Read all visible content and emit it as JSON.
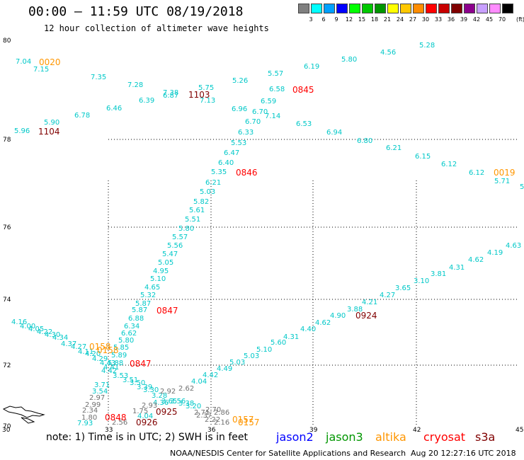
{
  "title": "00:00 – 11:59 UTC 08/19/2018",
  "subtitle": "12 hour collection of altimeter wave heights",
  "legend": {
    "unit": "(ft)",
    "bins": [
      {
        "label": "3",
        "color": "#808080"
      },
      {
        "label": "6",
        "color": "#00ffff"
      },
      {
        "label": "9",
        "color": "#00a0ff"
      },
      {
        "label": "12",
        "color": "#0000ff"
      },
      {
        "label": "15",
        "color": "#00ff00"
      },
      {
        "label": "18",
        "color": "#00c800"
      },
      {
        "label": "21",
        "color": "#009600"
      },
      {
        "label": "24",
        "color": "#ffff00"
      },
      {
        "label": "27",
        "color": "#ffc800"
      },
      {
        "label": "30",
        "color": "#ff8c00"
      },
      {
        "label": "33",
        "color": "#ff0000"
      },
      {
        "label": "36",
        "color": "#c80000"
      },
      {
        "label": "39",
        "color": "#800000"
      },
      {
        "label": "42",
        "color": "#8c008c"
      },
      {
        "label": "45",
        "color": "#c8a0ff"
      },
      {
        "label": "70",
        "color": "#ff8cff"
      },
      {
        "label": "",
        "color": "#000000"
      }
    ]
  },
  "map": {
    "lat_labels": [
      "80",
      "78",
      "76",
      "74",
      "72",
      "70"
    ],
    "lon_labels": [
      "30",
      "33",
      "36",
      "39",
      "42",
      "45"
    ]
  },
  "colors": {
    "jason2": "#0000ff",
    "jason3": "#009600",
    "altika": "#ff9600",
    "cryosat": "#ff0000",
    "s3a": "#800000",
    "wave_cyan": "#00c8c8",
    "wave_gray": "#707070"
  },
  "wave_heights": [
    {
      "v": "7.04",
      "c": "cyan"
    },
    {
      "v": "7.15",
      "c": "cyan"
    },
    {
      "v": "7.35",
      "c": "cyan"
    },
    {
      "v": "7.28",
      "c": "cyan"
    },
    {
      "v": "6.39",
      "c": "cyan"
    },
    {
      "v": "7.38",
      "c": "cyan"
    },
    {
      "v": "6.87",
      "c": "cyan"
    },
    {
      "v": "7.13",
      "c": "cyan"
    },
    {
      "v": "5.75",
      "c": "cyan"
    },
    {
      "v": "5.26",
      "c": "cyan"
    },
    {
      "v": "5.57",
      "c": "cyan"
    },
    {
      "v": "6.19",
      "c": "cyan"
    },
    {
      "v": "5.80",
      "c": "cyan"
    },
    {
      "v": "4.56",
      "c": "cyan"
    },
    {
      "v": "5.28",
      "c": "cyan"
    },
    {
      "v": "6.58",
      "c": "cyan"
    },
    {
      "v": "6.59",
      "c": "cyan"
    },
    {
      "v": "6.96",
      "c": "cyan"
    },
    {
      "v": "6.70",
      "c": "cyan"
    },
    {
      "v": "7.14",
      "c": "cyan"
    },
    {
      "v": "6.70",
      "c": "cyan"
    },
    {
      "v": "6.53",
      "c": "cyan"
    },
    {
      "v": "6.94",
      "c": "cyan"
    },
    {
      "v": "6.80",
      "c": "cyan"
    },
    {
      "v": "6.21",
      "c": "cyan"
    },
    {
      "v": "6.15",
      "c": "cyan"
    },
    {
      "v": "6.12",
      "c": "cyan"
    },
    {
      "v": "6.12",
      "c": "cyan"
    },
    {
      "v": "5.71",
      "c": "cyan"
    },
    {
      "v": "5",
      "c": "cyan"
    },
    {
      "v": "5.96",
      "c": "cyan"
    },
    {
      "v": "5.90",
      "c": "cyan"
    },
    {
      "v": "6.78",
      "c": "cyan"
    },
    {
      "v": "6.46",
      "c": "cyan"
    },
    {
      "v": "6.33",
      "c": "cyan"
    },
    {
      "v": "5.53",
      "c": "cyan"
    },
    {
      "v": "6.47",
      "c": "cyan"
    },
    {
      "v": "6.40",
      "c": "cyan"
    },
    {
      "v": "5.35",
      "c": "cyan"
    },
    {
      "v": "6.21",
      "c": "cyan"
    },
    {
      "v": "5.03",
      "c": "cyan"
    },
    {
      "v": "5.82",
      "c": "cyan"
    },
    {
      "v": "5.61",
      "c": "cyan"
    },
    {
      "v": "5.51",
      "c": "cyan"
    },
    {
      "v": "5.80",
      "c": "cyan"
    },
    {
      "v": "5.57",
      "c": "cyan"
    },
    {
      "v": "5.56",
      "c": "cyan"
    },
    {
      "v": "5.47",
      "c": "cyan"
    },
    {
      "v": "5.05",
      "c": "cyan"
    },
    {
      "v": "4.95",
      "c": "cyan"
    },
    {
      "v": "5.10",
      "c": "cyan"
    },
    {
      "v": "4.65",
      "c": "cyan"
    },
    {
      "v": "5.32",
      "c": "cyan"
    },
    {
      "v": "5.87",
      "c": "cyan"
    },
    {
      "v": "5.87",
      "c": "cyan"
    },
    {
      "v": "6.88",
      "c": "cyan"
    },
    {
      "v": "6.34",
      "c": "cyan"
    },
    {
      "v": "6.62",
      "c": "cyan"
    },
    {
      "v": "5.80",
      "c": "cyan"
    },
    {
      "v": "5.85",
      "c": "cyan"
    },
    {
      "v": "5.89",
      "c": "cyan"
    },
    {
      "v": "5.88",
      "c": "cyan"
    },
    {
      "v": "4.63",
      "c": "cyan"
    },
    {
      "v": "4.19",
      "c": "cyan"
    },
    {
      "v": "4.62",
      "c": "cyan"
    },
    {
      "v": "4.31",
      "c": "cyan"
    },
    {
      "v": "3.81",
      "c": "cyan"
    },
    {
      "v": "3.10",
      "c": "cyan"
    },
    {
      "v": "3.65",
      "c": "cyan"
    },
    {
      "v": "4.27",
      "c": "cyan"
    },
    {
      "v": "4.21",
      "c": "cyan"
    },
    {
      "v": "3.88",
      "c": "cyan"
    },
    {
      "v": "4.90",
      "c": "cyan"
    },
    {
      "v": "4.62",
      "c": "cyan"
    },
    {
      "v": "4.40",
      "c": "cyan"
    },
    {
      "v": "4.31",
      "c": "cyan"
    },
    {
      "v": "5.60",
      "c": "cyan"
    },
    {
      "v": "5.10",
      "c": "cyan"
    },
    {
      "v": "5.03",
      "c": "cyan"
    },
    {
      "v": "5.03",
      "c": "cyan"
    },
    {
      "v": "4.49",
      "c": "cyan"
    },
    {
      "v": "4.42",
      "c": "cyan"
    },
    {
      "v": "4.04",
      "c": "cyan"
    },
    {
      "v": "4.16",
      "c": "cyan"
    },
    {
      "v": "4.00",
      "c": "cyan"
    },
    {
      "v": "4.05",
      "c": "cyan"
    },
    {
      "v": "4.22",
      "c": "cyan"
    },
    {
      "v": "4.30",
      "c": "cyan"
    },
    {
      "v": "4.34",
      "c": "cyan"
    },
    {
      "v": "4.37",
      "c": "cyan"
    },
    {
      "v": "4.27",
      "c": "cyan"
    },
    {
      "v": "4.11",
      "c": "cyan"
    },
    {
      "v": "4.20",
      "c": "cyan"
    },
    {
      "v": "4.29",
      "c": "cyan"
    },
    {
      "v": "4.43",
      "c": "cyan"
    },
    {
      "v": "4.41",
      "c": "cyan"
    },
    {
      "v": "4.42",
      "c": "cyan"
    },
    {
      "v": "3.71",
      "c": "cyan"
    },
    {
      "v": "3.54",
      "c": "cyan"
    },
    {
      "v": "3.53",
      "c": "cyan"
    },
    {
      "v": "3.51",
      "c": "cyan"
    },
    {
      "v": "3.50",
      "c": "cyan"
    },
    {
      "v": "3.39",
      "c": "cyan"
    },
    {
      "v": "3.30",
      "c": "cyan"
    },
    {
      "v": "3.28",
      "c": "cyan"
    },
    {
      "v": "4.36",
      "c": "cyan"
    },
    {
      "v": "3.65",
      "c": "cyan"
    },
    {
      "v": "3.56",
      "c": "cyan"
    },
    {
      "v": "3.38",
      "c": "cyan"
    },
    {
      "v": "3.20",
      "c": "cyan"
    },
    {
      "v": "4.04",
      "c": "cyan"
    },
    {
      "v": "7.93",
      "c": "cyan"
    },
    {
      "v": "2.97",
      "c": "gray"
    },
    {
      "v": "2.99",
      "c": "gray"
    },
    {
      "v": "2.34",
      "c": "gray"
    },
    {
      "v": "1.80",
      "c": "gray"
    },
    {
      "v": "2.56",
      "c": "gray"
    },
    {
      "v": "1.75",
      "c": "gray"
    },
    {
      "v": "2.93",
      "c": "gray"
    },
    {
      "v": "2.62",
      "c": "gray"
    },
    {
      "v": "2.92",
      "c": "gray"
    },
    {
      "v": "2.71",
      "c": "gray"
    },
    {
      "v": "2.37",
      "c": "gray"
    },
    {
      "v": "2.22",
      "c": "gray"
    },
    {
      "v": "2.16",
      "c": "gray"
    },
    {
      "v": "2.70",
      "c": "gray"
    },
    {
      "v": "2.86",
      "c": "gray"
    }
  ],
  "pass_times": [
    {
      "t": "0020",
      "c": "altika"
    },
    {
      "t": "1103",
      "c": "s3a"
    },
    {
      "t": "0845",
      "c": "cryosat"
    },
    {
      "t": "1104",
      "c": "s3a"
    },
    {
      "t": "0846",
      "c": "cryosat"
    },
    {
      "t": "0019",
      "c": "altika"
    },
    {
      "t": "0847",
      "c": "cryosat"
    },
    {
      "t": "0924",
      "c": "s3a"
    },
    {
      "t": "0158",
      "c": "altika"
    },
    {
      "t": "0158",
      "c": "altika"
    },
    {
      "t": "0847",
      "c": "cryosat"
    },
    {
      "t": "0848",
      "c": "cryosat"
    },
    {
      "t": "0925",
      "c": "s3a"
    },
    {
      "t": "0926",
      "c": "s3a"
    },
    {
      "t": "0157",
      "c": "altika"
    },
    {
      "t": "0157",
      "c": "altika"
    }
  ],
  "note": "note: 1) Time is in UTC; 2) SWH is in feet",
  "satellites": [
    "jason2",
    "jason3",
    "altika",
    "cryosat",
    "s3a"
  ],
  "credit": "NOAA/NESDIS Center for Satellite Applications and Research",
  "generated": "Aug 20 12:27:16 UTC 2018"
}
